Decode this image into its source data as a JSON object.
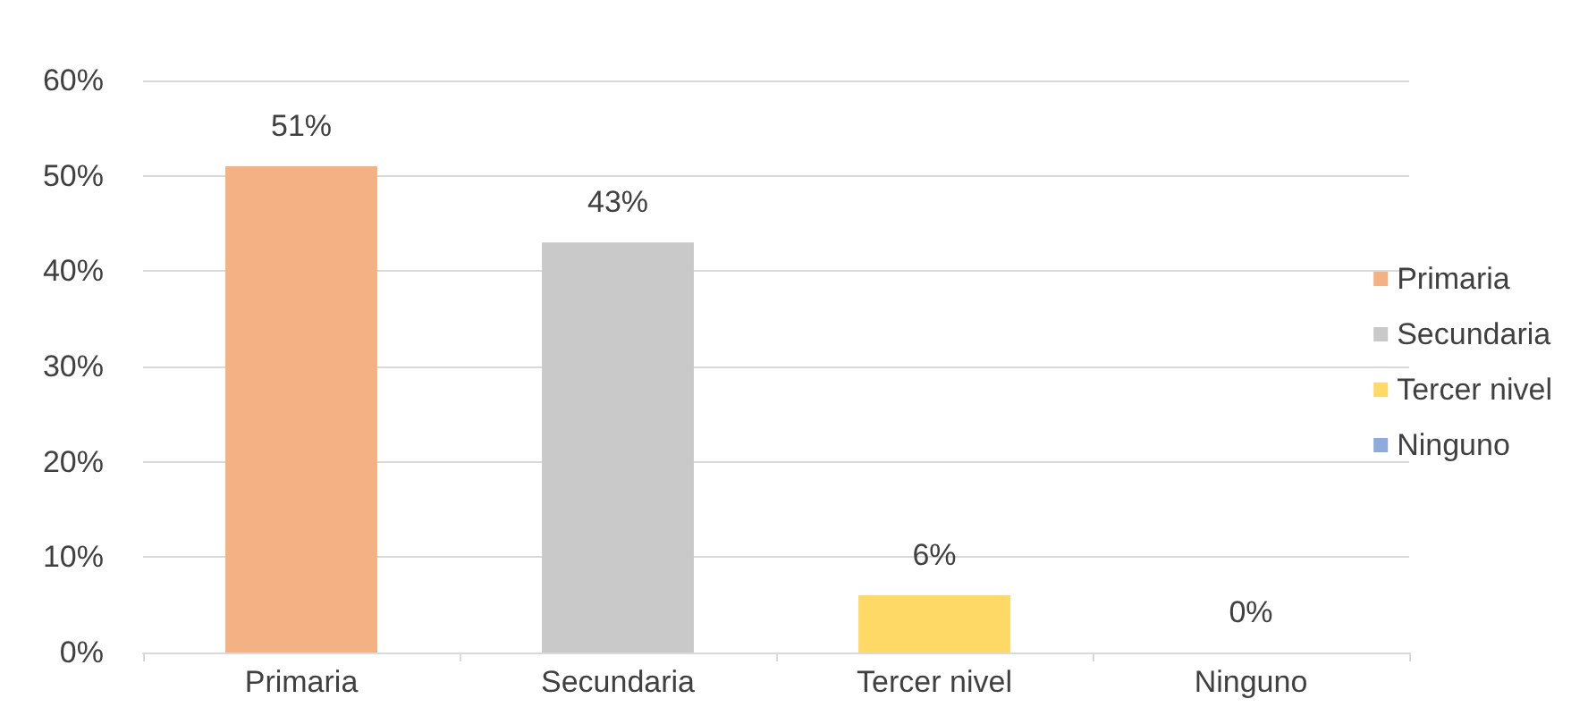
{
  "chart_data": {
    "type": "bar",
    "categories": [
      "Primaria",
      "Secundaria",
      "Tercer nivel",
      "Ninguno"
    ],
    "series": [
      {
        "name": "Primaria",
        "color": "#f4b183",
        "values": [
          51,
          null,
          null,
          null
        ],
        "value_labels": [
          "51%",
          null,
          null,
          null
        ]
      },
      {
        "name": "Secundaria",
        "color": "#c9c9c9",
        "values": [
          null,
          43,
          null,
          null
        ],
        "value_labels": [
          null,
          "43%",
          null,
          null
        ]
      },
      {
        "name": "Tercer nivel",
        "color": "#ffd966",
        "values": [
          null,
          null,
          6,
          null
        ],
        "value_labels": [
          null,
          null,
          "6%",
          null
        ]
      },
      {
        "name": "Ninguno",
        "color": "#8faadc",
        "values": [
          null,
          null,
          null,
          0
        ],
        "value_labels": [
          null,
          null,
          null,
          "0%"
        ]
      }
    ],
    "stacked": true,
    "ylim": [
      0,
      60
    ],
    "yticks": [
      {
        "value": 0,
        "label": "0%"
      },
      {
        "value": 10,
        "label": "10%"
      },
      {
        "value": 20,
        "label": "20%"
      },
      {
        "value": 30,
        "label": "30%"
      },
      {
        "value": 40,
        "label": "40%"
      },
      {
        "value": 50,
        "label": "50%"
      },
      {
        "value": 60,
        "label": "60%"
      }
    ],
    "grid": "y",
    "legend": "right"
  }
}
